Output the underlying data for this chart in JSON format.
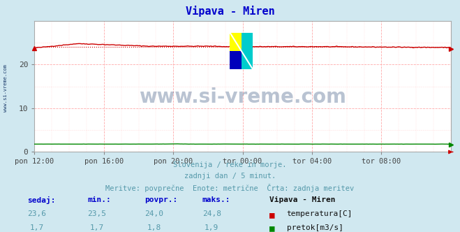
{
  "title": "Vipava - Miren",
  "title_color": "#0000cc",
  "bg_color": "#d0e8f0",
  "plot_bg_color": "#ffffff",
  "grid_color_major": "#ffaaaa",
  "grid_color_minor": "#ffdddd",
  "x_labels": [
    "pon 12:00",
    "pon 16:00",
    "pon 20:00",
    "tor 00:00",
    "tor 04:00",
    "tor 08:00"
  ],
  "x_positions": [
    0,
    48,
    96,
    144,
    192,
    240
  ],
  "n_points": 289,
  "temp_min": 23.5,
  "temp_max": 24.8,
  "temp_avg": 24.0,
  "temp_current": 23.6,
  "flow_min": 1.7,
  "flow_max": 1.9,
  "flow_avg": 1.8,
  "flow_current": 1.7,
  "temp_color": "#cc0000",
  "flow_color": "#008800",
  "ylim_min": 0,
  "ylim_max": 30,
  "yticks": [
    0,
    10,
    20
  ],
  "footer_line1": "Slovenija / reke in morje.",
  "footer_line2": "zadnji dan / 5 minut.",
  "footer_line3": "Meritve: povprečne  Enote: metrične  Črta: zadnja meritev",
  "footer_color": "#5599aa",
  "label_header": "Vipava - Miren",
  "label1_name": "temperatura[C]",
  "label2_name": "pretok[m3/s]",
  "watermark": "www.si-vreme.com",
  "watermark_color": "#1a3a6a",
  "left_label": "www.si-vreme.com",
  "left_label_color": "#1a3a6a",
  "table_headers": [
    "sedaj:",
    "min.:",
    "povpr.:",
    "maks.:"
  ],
  "table_color": "#0000cc",
  "values_temp": [
    "23,6",
    "23,5",
    "24,0",
    "24,8"
  ],
  "values_flow": [
    "1,7",
    "1,7",
    "1,8",
    "1,9"
  ],
  "data_color": "#5599aa",
  "logo_colors": [
    "#ffff00",
    "#00cccc",
    "#0000cc",
    "#00aaff"
  ],
  "arrow_color": "#cc0000"
}
